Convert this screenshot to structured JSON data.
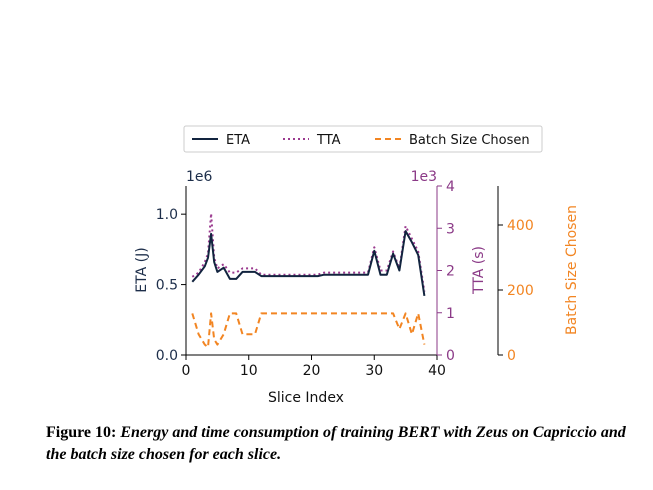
{
  "chart_data": {
    "type": "line",
    "xlabel": "Slice Index",
    "y_left_label": "ETA (J)",
    "y_left_exponent": "1e6",
    "y_mid_label": "TTA (s)",
    "y_mid_exponent": "1e3",
    "y_right_label": "Batch Size Chosen",
    "xlim": [
      0,
      40
    ],
    "x_ticks": [
      "0",
      "10",
      "20",
      "30",
      "40"
    ],
    "y_left_lim": [
      0,
      1.2
    ],
    "y_left_ticks": [
      "0.0",
      "0.5",
      "1.0"
    ],
    "y_mid_lim": [
      0,
      4
    ],
    "y_mid_ticks": [
      "0",
      "1",
      "2",
      "3",
      "4"
    ],
    "y_right_lim": [
      0,
      520
    ],
    "y_right_ticks": [
      "0",
      "200",
      "400"
    ],
    "legend": [
      "ETA",
      "TTA",
      "Batch Size Chosen"
    ],
    "legend_position": "top",
    "colors": {
      "eta": "#12243f",
      "tta": "#9b3a8f",
      "batch": "#f28522",
      "mid_axis": "#8b3a87",
      "right_axis": "#f28522",
      "left_axis": "#1d2e4a"
    },
    "series": [
      {
        "name": "ETA",
        "x": [
          1,
          2,
          3,
          3.5,
          4,
          4.5,
          5,
          6,
          7,
          8,
          9,
          10,
          11,
          12,
          13,
          14,
          15,
          16,
          17,
          18,
          19,
          20,
          21,
          22,
          23,
          24,
          25,
          26,
          27,
          28,
          29,
          30,
          31,
          32,
          33,
          34,
          35,
          36,
          37,
          38
        ],
        "y": [
          0.52,
          0.57,
          0.63,
          0.69,
          0.86,
          0.66,
          0.59,
          0.62,
          0.54,
          0.54,
          0.59,
          0.59,
          0.59,
          0.56,
          0.56,
          0.56,
          0.56,
          0.56,
          0.56,
          0.56,
          0.56,
          0.56,
          0.56,
          0.57,
          0.57,
          0.57,
          0.57,
          0.57,
          0.57,
          0.57,
          0.57,
          0.74,
          0.57,
          0.57,
          0.72,
          0.6,
          0.88,
          0.8,
          0.71,
          0.42
        ]
      },
      {
        "name": "TTA",
        "x": [
          1,
          2,
          3,
          3.5,
          4,
          4.5,
          5,
          6,
          7,
          8,
          9,
          10,
          11,
          12,
          13,
          14,
          15,
          16,
          17,
          18,
          19,
          20,
          21,
          22,
          23,
          24,
          25,
          26,
          27,
          28,
          29,
          30,
          31,
          32,
          33,
          34,
          35,
          36,
          37,
          38
        ],
        "y": [
          1.85,
          1.95,
          2.2,
          2.4,
          3.35,
          2.3,
          2.05,
          2.15,
          1.95,
          1.95,
          2.05,
          2.05,
          2.05,
          1.9,
          1.9,
          1.9,
          1.9,
          1.9,
          1.9,
          1.9,
          1.9,
          1.9,
          1.9,
          1.95,
          1.95,
          1.95,
          1.95,
          1.95,
          1.95,
          1.95,
          1.95,
          2.55,
          2.0,
          2.0,
          2.45,
          2.05,
          3.05,
          2.75,
          2.45,
          1.5
        ]
      },
      {
        "name": "Batch Size Chosen",
        "x": [
          1,
          2,
          3,
          3.5,
          4,
          4.5,
          5,
          6,
          7,
          8,
          9,
          10,
          11,
          12,
          13,
          14,
          15,
          16,
          17,
          18,
          19,
          20,
          21,
          22,
          23,
          24,
          25,
          26,
          27,
          28,
          29,
          30,
          31,
          32,
          33,
          34,
          35,
          36,
          37,
          38
        ],
        "y": [
          128,
          64,
          32,
          24,
          128,
          48,
          32,
          64,
          128,
          128,
          64,
          64,
          64,
          128,
          128,
          128,
          128,
          128,
          128,
          128,
          128,
          128,
          128,
          128,
          128,
          128,
          128,
          128,
          128,
          128,
          128,
          128,
          128,
          128,
          128,
          80,
          128,
          64,
          128,
          32
        ]
      }
    ]
  },
  "caption": {
    "label": "Figure 10:",
    "text": "Energy and time consumption of training BERT with Zeus on Capriccio and the batch size chosen for each slice."
  }
}
